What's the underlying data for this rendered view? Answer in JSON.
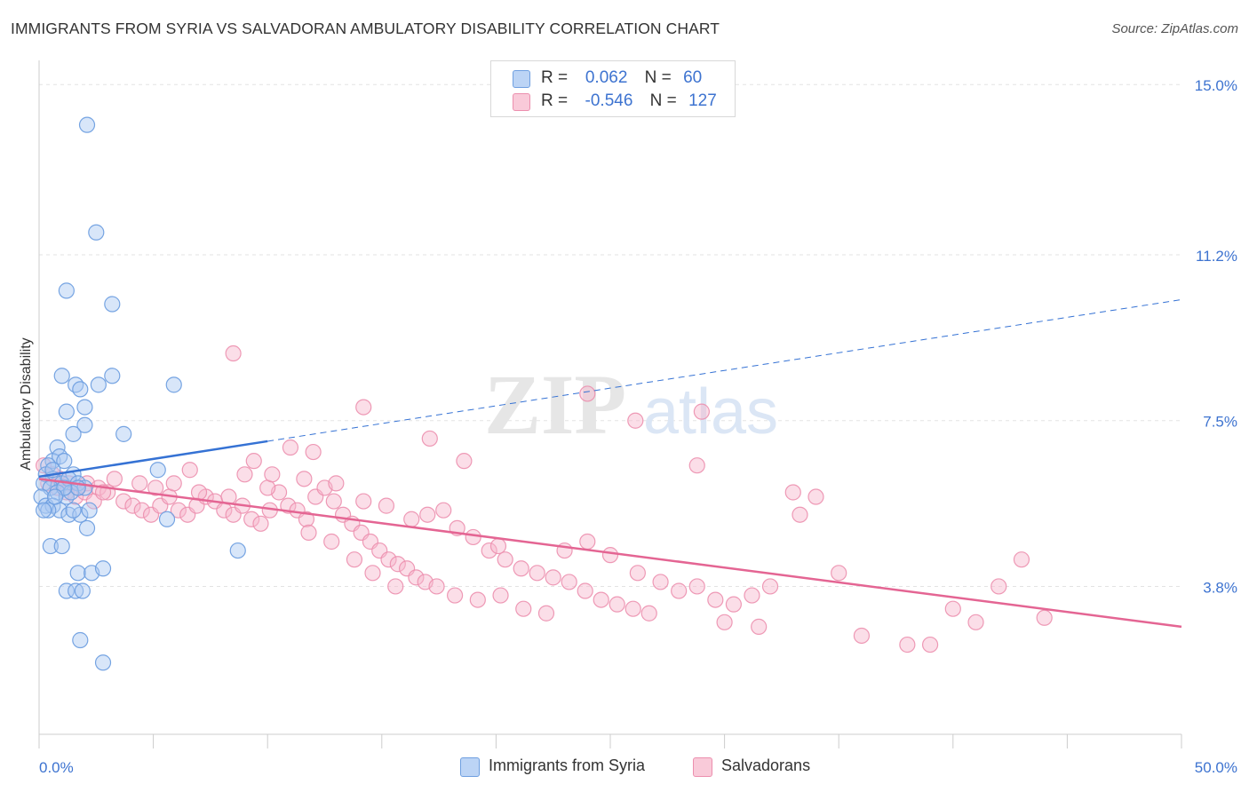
{
  "title": "IMMIGRANTS FROM SYRIA VS SALVADORAN AMBULATORY DISABILITY CORRELATION CHART",
  "source": "Source: ZipAtlas.com",
  "watermark": {
    "zip": "ZIP",
    "atlas": "atlas"
  },
  "legend": {
    "rows": [
      {
        "r_label": "R =",
        "r_value": "0.062",
        "n_label": "N =",
        "n_value": "60"
      },
      {
        "r_label": "R =",
        "r_value": "-0.546",
        "n_label": "N =",
        "n_value": "127"
      }
    ]
  },
  "colors": {
    "syria_fill": "#a9c8f2",
    "syria_stroke": "#6f9fe0",
    "syria_line": "#3572d4",
    "salv_fill": "#f6b6cb",
    "salv_stroke": "#ec8fae",
    "salv_line": "#e46593",
    "axis_text": "#3d73d0",
    "grid": "#e3e3e3"
  },
  "chart_data": {
    "type": "scatter",
    "title": "IMMIGRANTS FROM SYRIA VS SALVADORAN AMBULATORY DISABILITY CORRELATION CHART",
    "xlabel": "",
    "ylabel": "Ambulatory Disability",
    "xlim": [
      0,
      50
    ],
    "ylim": [
      0.5,
      15.5
    ],
    "x_tick_labels": [
      "0.0%",
      "50.0%"
    ],
    "y_ticks": [
      3.8,
      7.5,
      11.2,
      15.0
    ],
    "y_tick_labels": [
      "3.8%",
      "7.5%",
      "11.2%",
      "15.0%"
    ],
    "grid": true,
    "legend_position": "bottom",
    "series": [
      {
        "name": "Immigrants from Syria",
        "r": 0.062,
        "n": 60,
        "trend": {
          "x": [
            0,
            50
          ],
          "y": [
            6.25,
            10.2
          ],
          "solid_until_x": 10
        },
        "points": [
          [
            2.1,
            14.1
          ],
          [
            2.5,
            11.7
          ],
          [
            1.2,
            10.4
          ],
          [
            3.2,
            10.1
          ],
          [
            1.0,
            8.5
          ],
          [
            3.2,
            8.5
          ],
          [
            1.6,
            8.3
          ],
          [
            1.8,
            8.2
          ],
          [
            2.6,
            8.3
          ],
          [
            5.9,
            8.3
          ],
          [
            1.2,
            7.7
          ],
          [
            2.0,
            7.8
          ],
          [
            2.0,
            7.4
          ],
          [
            1.5,
            7.2
          ],
          [
            3.7,
            7.2
          ],
          [
            0.8,
            6.9
          ],
          [
            0.6,
            6.6
          ],
          [
            0.9,
            6.7
          ],
          [
            1.1,
            6.6
          ],
          [
            1.5,
            6.3
          ],
          [
            0.4,
            6.5
          ],
          [
            0.3,
            6.3
          ],
          [
            0.6,
            6.2
          ],
          [
            1.0,
            6.1
          ],
          [
            1.3,
            6.2
          ],
          [
            1.7,
            6.1
          ],
          [
            2.0,
            6.0
          ],
          [
            0.2,
            6.1
          ],
          [
            0.5,
            6.0
          ],
          [
            0.8,
            5.9
          ],
          [
            1.2,
            5.8
          ],
          [
            1.4,
            5.9
          ],
          [
            1.7,
            6.0
          ],
          [
            5.2,
            6.4
          ],
          [
            0.1,
            5.8
          ],
          [
            0.3,
            5.6
          ],
          [
            0.6,
            5.6
          ],
          [
            0.9,
            5.5
          ],
          [
            0.4,
            5.5
          ],
          [
            0.2,
            5.5
          ],
          [
            1.3,
            5.4
          ],
          [
            1.8,
            5.4
          ],
          [
            2.2,
            5.5
          ],
          [
            5.6,
            5.3
          ],
          [
            2.1,
            5.1
          ],
          [
            0.5,
            4.7
          ],
          [
            1.0,
            4.7
          ],
          [
            8.7,
            4.6
          ],
          [
            1.7,
            4.1
          ],
          [
            2.3,
            4.1
          ],
          [
            2.8,
            4.2
          ],
          [
            1.2,
            3.7
          ],
          [
            1.6,
            3.7
          ],
          [
            1.9,
            3.7
          ],
          [
            1.8,
            2.6
          ],
          [
            2.8,
            2.1
          ],
          [
            0.6,
            6.4
          ],
          [
            1.1,
            6.0
          ],
          [
            0.7,
            5.8
          ],
          [
            1.5,
            5.5
          ]
        ]
      },
      {
        "name": "Salvadorans",
        "r": -0.546,
        "n": 127,
        "trend": {
          "x": [
            0,
            50
          ],
          "y": [
            6.2,
            2.9
          ]
        },
        "points": [
          [
            0.2,
            6.5
          ],
          [
            0.6,
            6.3
          ],
          [
            0.9,
            6.2
          ],
          [
            1.3,
            6.1
          ],
          [
            1.7,
            6.0
          ],
          [
            2.1,
            6.1
          ],
          [
            2.6,
            6.0
          ],
          [
            3.0,
            5.9
          ],
          [
            0.4,
            6.1
          ],
          [
            0.8,
            6.0
          ],
          [
            1.2,
            5.9
          ],
          [
            1.6,
            5.8
          ],
          [
            2.0,
            5.9
          ],
          [
            2.4,
            5.7
          ],
          [
            2.8,
            5.9
          ],
          [
            3.3,
            6.2
          ],
          [
            3.7,
            5.7
          ],
          [
            4.1,
            5.6
          ],
          [
            4.5,
            5.5
          ],
          [
            4.9,
            5.4
          ],
          [
            5.3,
            5.6
          ],
          [
            5.7,
            5.8
          ],
          [
            6.1,
            5.5
          ],
          [
            6.5,
            5.4
          ],
          [
            6.9,
            5.6
          ],
          [
            7.3,
            5.8
          ],
          [
            7.7,
            5.7
          ],
          [
            8.1,
            5.5
          ],
          [
            8.5,
            5.4
          ],
          [
            8.9,
            5.6
          ],
          [
            9.3,
            5.3
          ],
          [
            9.7,
            5.2
          ],
          [
            10.1,
            5.5
          ],
          [
            10.5,
            5.9
          ],
          [
            10.9,
            5.6
          ],
          [
            11.3,
            5.5
          ],
          [
            11.7,
            5.3
          ],
          [
            12.1,
            5.8
          ],
          [
            12.5,
            6.0
          ],
          [
            12.9,
            5.7
          ],
          [
            13.3,
            5.4
          ],
          [
            13.7,
            5.2
          ],
          [
            14.1,
            5.0
          ],
          [
            14.5,
            4.8
          ],
          [
            14.9,
            4.6
          ],
          [
            15.3,
            4.4
          ],
          [
            15.7,
            4.3
          ],
          [
            16.1,
            4.2
          ],
          [
            16.5,
            4.0
          ],
          [
            16.9,
            3.9
          ],
          [
            4.4,
            6.1
          ],
          [
            5.1,
            6.0
          ],
          [
            5.9,
            6.1
          ],
          [
            6.6,
            6.4
          ],
          [
            7.0,
            5.9
          ],
          [
            8.3,
            5.8
          ],
          [
            9.0,
            6.3
          ],
          [
            10.0,
            6.0
          ],
          [
            11.0,
            6.9
          ],
          [
            11.6,
            6.2
          ],
          [
            12.0,
            6.8
          ],
          [
            13.0,
            6.1
          ],
          [
            14.2,
            5.7
          ],
          [
            15.2,
            5.6
          ],
          [
            16.3,
            5.3
          ],
          [
            17.0,
            5.4
          ],
          [
            17.7,
            5.5
          ],
          [
            18.3,
            5.1
          ],
          [
            19.0,
            4.9
          ],
          [
            19.7,
            4.6
          ],
          [
            20.4,
            4.4
          ],
          [
            21.1,
            4.2
          ],
          [
            21.8,
            4.1
          ],
          [
            22.5,
            4.0
          ],
          [
            23.2,
            3.9
          ],
          [
            23.9,
            3.7
          ],
          [
            24.6,
            3.5
          ],
          [
            25.3,
            3.4
          ],
          [
            26.0,
            3.3
          ],
          [
            26.7,
            3.2
          ],
          [
            9.4,
            6.6
          ],
          [
            10.2,
            6.3
          ],
          [
            11.8,
            5.0
          ],
          [
            12.8,
            4.8
          ],
          [
            13.8,
            4.4
          ],
          [
            14.6,
            4.1
          ],
          [
            15.6,
            3.8
          ],
          [
            17.4,
            3.8
          ],
          [
            18.2,
            3.6
          ],
          [
            19.2,
            3.5
          ],
          [
            20.2,
            3.6
          ],
          [
            21.2,
            3.3
          ],
          [
            22.2,
            3.2
          ],
          [
            23.0,
            4.6
          ],
          [
            24.0,
            4.8
          ],
          [
            25.0,
            4.5
          ],
          [
            26.2,
            4.1
          ],
          [
            27.2,
            3.9
          ],
          [
            28.0,
            3.7
          ],
          [
            28.8,
            3.8
          ],
          [
            29.6,
            3.5
          ],
          [
            30.4,
            3.4
          ],
          [
            31.2,
            3.6
          ],
          [
            32.0,
            3.8
          ],
          [
            30.0,
            3.0
          ],
          [
            31.5,
            2.9
          ],
          [
            33.0,
            5.9
          ],
          [
            34.0,
            5.8
          ],
          [
            35.0,
            4.1
          ],
          [
            36.0,
            2.7
          ],
          [
            38.0,
            2.5
          ],
          [
            39.0,
            2.5
          ],
          [
            40.0,
            3.3
          ],
          [
            41.0,
            3.0
          ],
          [
            42.0,
            3.8
          ],
          [
            43.0,
            4.4
          ],
          [
            44.0,
            3.1
          ],
          [
            8.5,
            9.0
          ],
          [
            14.2,
            7.8
          ],
          [
            17.1,
            7.1
          ],
          [
            24.0,
            8.1
          ],
          [
            26.1,
            7.5
          ],
          [
            29.0,
            7.7
          ],
          [
            28.8,
            6.5
          ],
          [
            33.3,
            5.4
          ],
          [
            20.1,
            4.7
          ],
          [
            18.6,
            6.6
          ]
        ]
      }
    ]
  },
  "bottom_legend": [
    {
      "label": "Immigrants from Syria"
    },
    {
      "label": "Salvadorans"
    }
  ]
}
